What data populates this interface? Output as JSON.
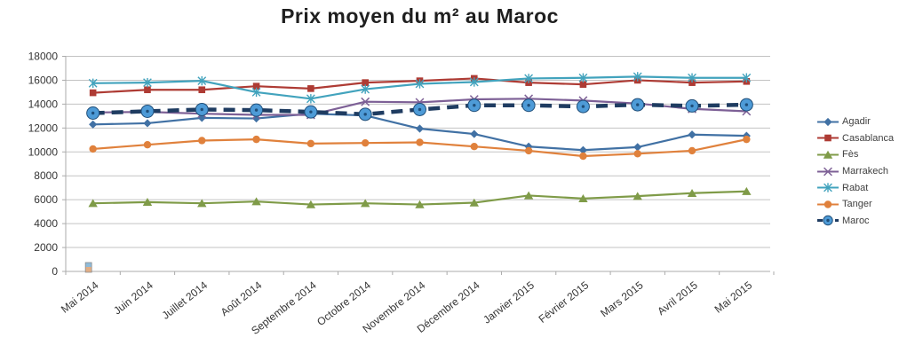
{
  "chart_data": {
    "type": "line",
    "title": "Prix moyen du m² au Maroc",
    "xlabel": "",
    "ylabel": "",
    "ylim": [
      0,
      18000
    ],
    "yticks": [
      0,
      2000,
      4000,
      6000,
      8000,
      10000,
      12000,
      14000,
      16000,
      18000
    ],
    "grid": true,
    "legend_position": "right",
    "categories": [
      "Mai 2014",
      "Juin 2014",
      "Juillet 2014",
      "Août 2014",
      "Septembre 2014",
      "Octobre 2014",
      "Novembre 2014",
      "Décembre 2014",
      "Janvier 2015",
      "Février 2015",
      "Mars 2015",
      "Avril 2015",
      "Mai 2015"
    ],
    "series": [
      {
        "name": "Agadir",
        "color": "#4171A4",
        "marker": "diamond",
        "dashed": false,
        "values": [
          12300,
          12400,
          12850,
          12800,
          13200,
          13050,
          11950,
          11500,
          10450,
          10150,
          10400,
          11450,
          11350
        ]
      },
      {
        "name": "Casablanca",
        "color": "#AE3B34",
        "marker": "square",
        "dashed": false,
        "values": [
          14950,
          15200,
          15200,
          15500,
          15300,
          15800,
          15950,
          16150,
          15800,
          15650,
          16000,
          15800,
          15900
        ]
      },
      {
        "name": "Fès",
        "color": "#7F9B48",
        "marker": "triangle",
        "dashed": false,
        "values": [
          5700,
          5800,
          5700,
          5850,
          5600,
          5700,
          5600,
          5750,
          6350,
          6100,
          6300,
          6550,
          6700
        ]
      },
      {
        "name": "Marrakech",
        "color": "#7D6096",
        "marker": "x",
        "dashed": false,
        "values": [
          13300,
          13350,
          13200,
          13100,
          13100,
          14200,
          14150,
          14400,
          14450,
          14300,
          14050,
          13600,
          13400
        ]
      },
      {
        "name": "Rabat",
        "color": "#42A3BD",
        "marker": "asterisk",
        "dashed": false,
        "values": [
          15750,
          15800,
          15950,
          15000,
          14450,
          15250,
          15700,
          15850,
          16150,
          16200,
          16300,
          16200,
          16200
        ]
      },
      {
        "name": "Tanger",
        "color": "#E0813C",
        "marker": "circle",
        "dashed": false,
        "values": [
          10250,
          10600,
          10950,
          11050,
          10700,
          10750,
          10800,
          10450,
          10100,
          9650,
          9850,
          10100,
          11050
        ]
      },
      {
        "name": "Maroc",
        "color": "#1F3C61",
        "marker": "big-circle",
        "dashed": true,
        "marker_fill": "#4E9BD7",
        "marker_edge": "#1F4E79",
        "values": [
          13250,
          13400,
          13550,
          13500,
          13350,
          13150,
          13550,
          13900,
          13900,
          13800,
          13950,
          13850,
          13950
        ]
      }
    ],
    "origin_artifact": {
      "present": true,
      "top_color": "#8FBBD9",
      "bottom_color": "#E2AE85",
      "edge_color": "#8C8C8C"
    }
  },
  "style_colors": {
    "gridline": "#C3C3C3",
    "axis": "#ABABAB",
    "tick_label": "#353535",
    "legend_text": "#3F3F3F",
    "title_text": "#1F1F1F"
  }
}
